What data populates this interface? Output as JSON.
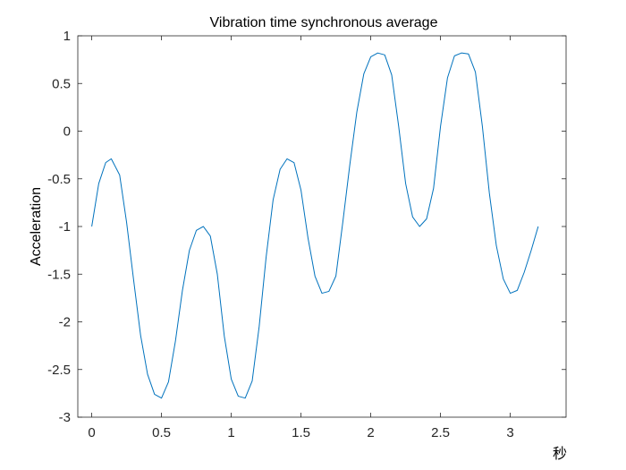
{
  "chart_data": {
    "type": "line",
    "title": "Vibration time synchronous average",
    "xlabel": "秒",
    "ylabel": "Acceleration",
    "xlim": [
      -0.1,
      3.4
    ],
    "ylim": [
      -3,
      1
    ],
    "xticks": [
      "0",
      "0.5",
      "1",
      "1.5",
      "2",
      "2.5",
      "3"
    ],
    "yticks": [
      "1",
      "0.5",
      "0",
      "-0.5",
      "-1",
      "-1.5",
      "-2",
      "-2.5",
      "-3"
    ],
    "grid": false,
    "legend": "none",
    "series": [
      {
        "color": "#0072BD",
        "x": [
          0.0,
          0.05,
          0.1,
          0.14,
          0.2,
          0.25,
          0.3,
          0.35,
          0.4,
          0.45,
          0.5,
          0.55,
          0.6,
          0.65,
          0.7,
          0.75,
          0.8,
          0.85,
          0.9,
          0.95,
          1.0,
          1.05,
          1.1,
          1.15,
          1.2,
          1.25,
          1.3,
          1.35,
          1.4,
          1.45,
          1.5,
          1.55,
          1.6,
          1.65,
          1.7,
          1.75,
          1.8,
          1.85,
          1.9,
          1.95,
          2.0,
          2.05,
          2.1,
          2.15,
          2.2,
          2.25,
          2.3,
          2.35,
          2.4,
          2.45,
          2.5,
          2.55,
          2.6,
          2.65,
          2.7,
          2.75,
          2.8,
          2.85,
          2.9,
          2.95,
          3.0,
          3.05,
          3.1,
          3.15,
          3.2
        ],
        "y": [
          -1.0,
          -0.55,
          -0.33,
          -0.29,
          -0.46,
          -0.96,
          -1.56,
          -2.14,
          -2.55,
          -2.76,
          -2.8,
          -2.63,
          -2.2,
          -1.67,
          -1.25,
          -1.04,
          -1.0,
          -1.1,
          -1.5,
          -2.15,
          -2.6,
          -2.78,
          -2.8,
          -2.62,
          -2.05,
          -1.32,
          -0.72,
          -0.4,
          -0.29,
          -0.33,
          -0.62,
          -1.12,
          -1.52,
          -1.7,
          -1.68,
          -1.52,
          -0.95,
          -0.35,
          0.2,
          0.6,
          0.78,
          0.82,
          0.8,
          0.59,
          0.05,
          -0.55,
          -0.9,
          -1.0,
          -0.92,
          -0.6,
          0.05,
          0.56,
          0.79,
          0.82,
          0.81,
          0.62,
          0.05,
          -0.65,
          -1.2,
          -1.55,
          -1.7,
          -1.67,
          -1.48,
          -1.25,
          -1.0
        ]
      }
    ]
  }
}
